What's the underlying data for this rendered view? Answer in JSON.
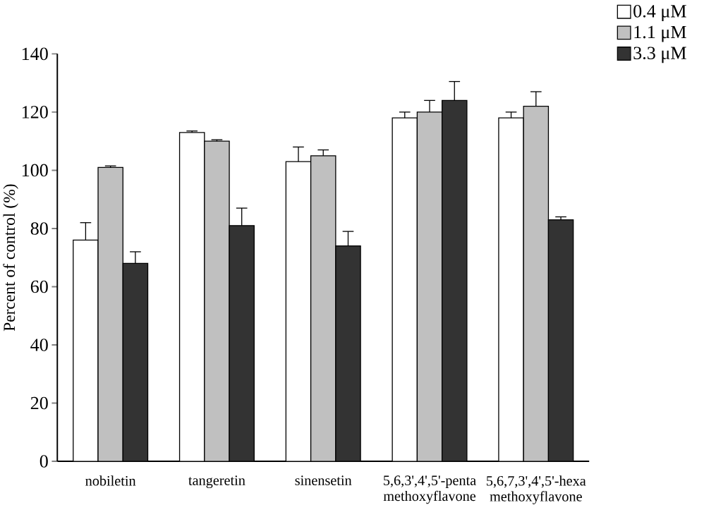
{
  "chart_data": {
    "type": "bar",
    "ylabel": "Percent of control (%)",
    "categories": [
      "nobiletin",
      "tangeretin",
      "sinensetin",
      "5,6,3',4',5'-penta methoxyflavone",
      "5,6,7,3',4',5'-hexa methoxyflavone"
    ],
    "series": [
      {
        "name": "0.4 μM",
        "color": "#ffffff",
        "values": [
          76,
          113,
          103,
          118,
          118
        ],
        "errors": [
          [
            76,
            82
          ],
          [
            113,
            113.5
          ],
          [
            103,
            108
          ],
          [
            118,
            120
          ],
          [
            118,
            120
          ]
        ]
      },
      {
        "name": "1.1 μM",
        "color": "#c0c0c0",
        "values": [
          101,
          110,
          105,
          120,
          122
        ],
        "errors": [
          [
            101,
            101.5
          ],
          [
            110,
            110.5
          ],
          [
            105,
            107
          ],
          [
            120,
            124
          ],
          [
            122,
            127
          ]
        ]
      },
      {
        "name": "3.3 μM",
        "color": "#333333",
        "values": [
          68,
          81,
          74,
          124,
          83
        ],
        "errors": [
          [
            68,
            72
          ],
          [
            81,
            87
          ],
          [
            74,
            79
          ],
          [
            124,
            130.5
          ],
          [
            83,
            84
          ]
        ]
      }
    ],
    "ylim": [
      0,
      140
    ],
    "yticks": [
      0,
      20,
      40,
      60,
      80,
      100,
      120,
      140
    ],
    "legend": "top right"
  }
}
